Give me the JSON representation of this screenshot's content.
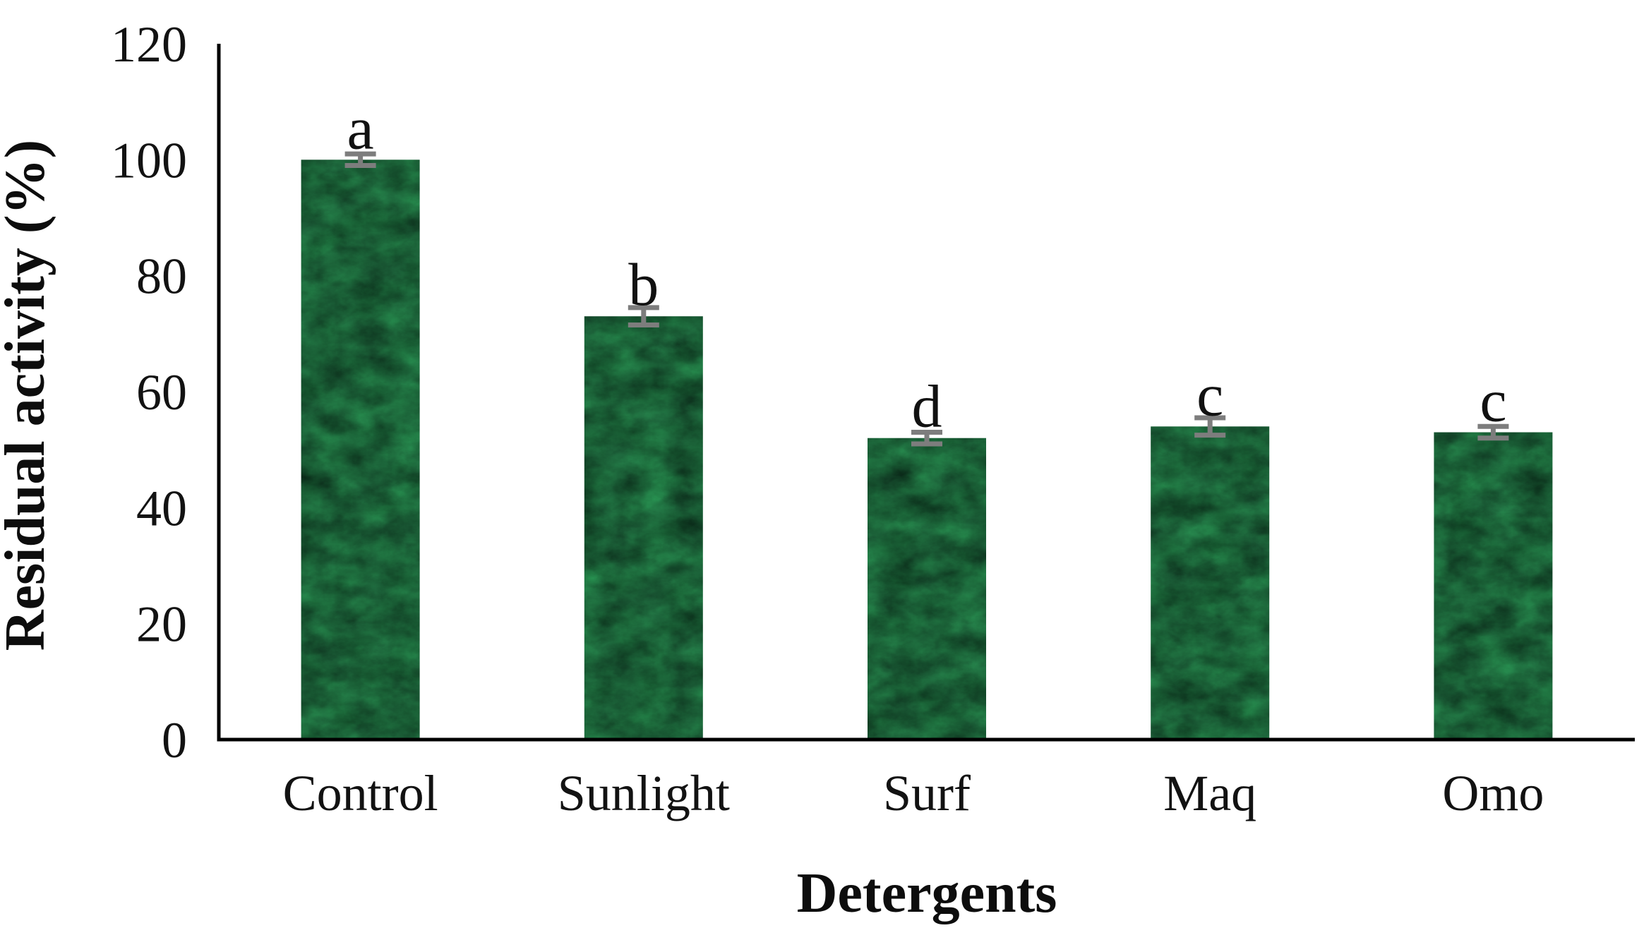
{
  "figure": {
    "background": "#ffffff"
  },
  "chart_data": {
    "type": "bar",
    "title": "",
    "categories": [
      "Control",
      "Sunlight",
      "Surf",
      "Maq",
      "Omo"
    ],
    "values": [
      100,
      73,
      52,
      54,
      53
    ],
    "errors": [
      1,
      1.5,
      1,
      1.5,
      1
    ],
    "bar_labels": [
      "a",
      "b",
      "d",
      "c",
      "c"
    ],
    "xlabel": "Detergents",
    "ylabel": "Residual activity (%)",
    "ylim": [
      0,
      120
    ],
    "yticks": [
      0,
      20,
      40,
      60,
      80,
      100,
      120
    ],
    "grid": false,
    "legend": false,
    "bar_color": "#1b5e38",
    "bar_texture": "dark-green-marble",
    "error_bar_color": "#7d7d7d",
    "axis_color": "#000000",
    "text_color": "#121212"
  }
}
